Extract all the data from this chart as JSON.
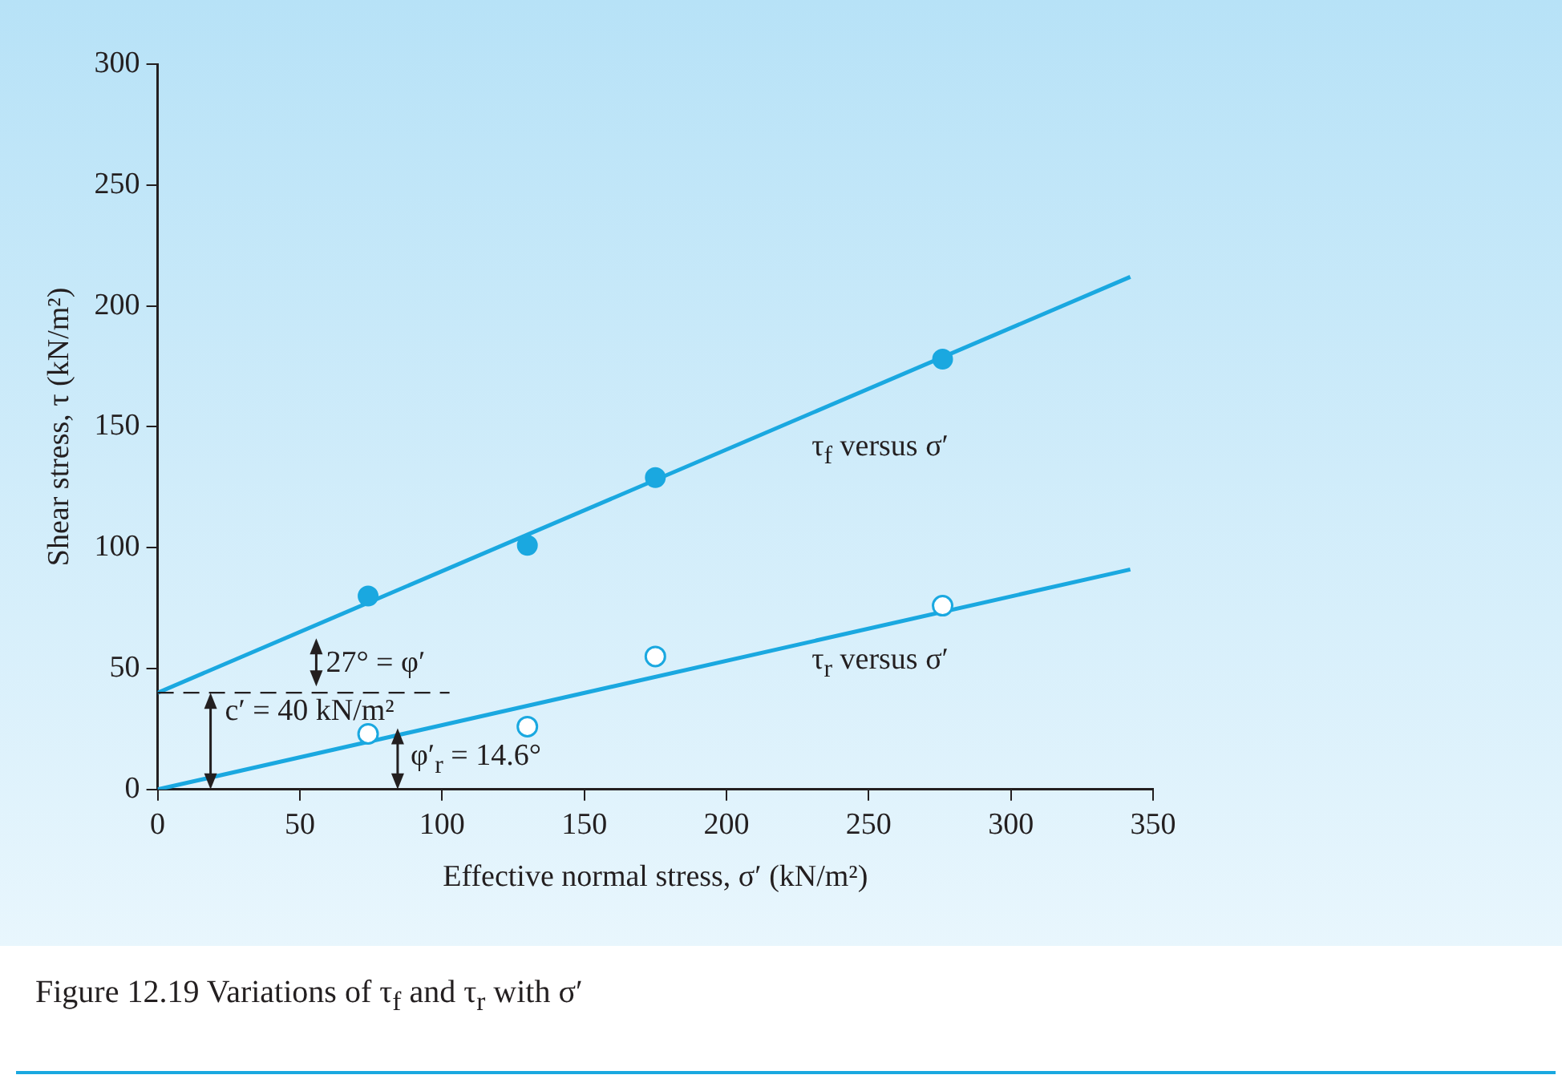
{
  "chart_data": {
    "type": "scatter",
    "xlabel": "Effective normal stress, σ′ (kN/m²)",
    "ylabel": "Shear stress, τ (kN/m²)",
    "xlim": [
      0,
      350
    ],
    "xticks": [
      0,
      50,
      100,
      150,
      200,
      250,
      300,
      350
    ],
    "ylim": [
      0,
      300
    ],
    "yticks": [
      0,
      50,
      100,
      150,
      200,
      250,
      300
    ],
    "grid": false,
    "legend": false,
    "series": [
      {
        "marker": "circle",
        "color": "#1aa8e0",
        "x": [
          74,
          130,
          175,
          276
        ],
        "values": [
          80,
          101,
          129,
          178
        ]
      },
      {
        "type": "line",
        "marker": "none",
        "color": "#1aa8e0",
        "x": [
          0,
          342
        ],
        "values": [
          40,
          212
        ]
      },
      {
        "marker": "circle-open",
        "color": "#1aa8e0",
        "x": [
          74,
          130,
          175,
          276
        ],
        "values": [
          23,
          26,
          55,
          76
        ]
      },
      {
        "type": "line",
        "marker": "none",
        "color": "#1aa8e0",
        "x": [
          0,
          342
        ],
        "values": [
          0,
          91
        ]
      }
    ],
    "ref_lines": [
      {
        "axis": "y",
        "value": 40,
        "label": "c′ = 40 kN/m²",
        "color": "#231f20",
        "line_style": "dashed"
      }
    ],
    "annotations": [
      "τ$_{f}$ versus σ′",
      "τ$_{r}$ versus σ′",
      "27° = φ′",
      "φ′$_{r}$ = 14.6°",
      "Figure 12.19 Variations of τ$_{f}$ and τ$_{r}$ with σ′"
    ]
  }
}
